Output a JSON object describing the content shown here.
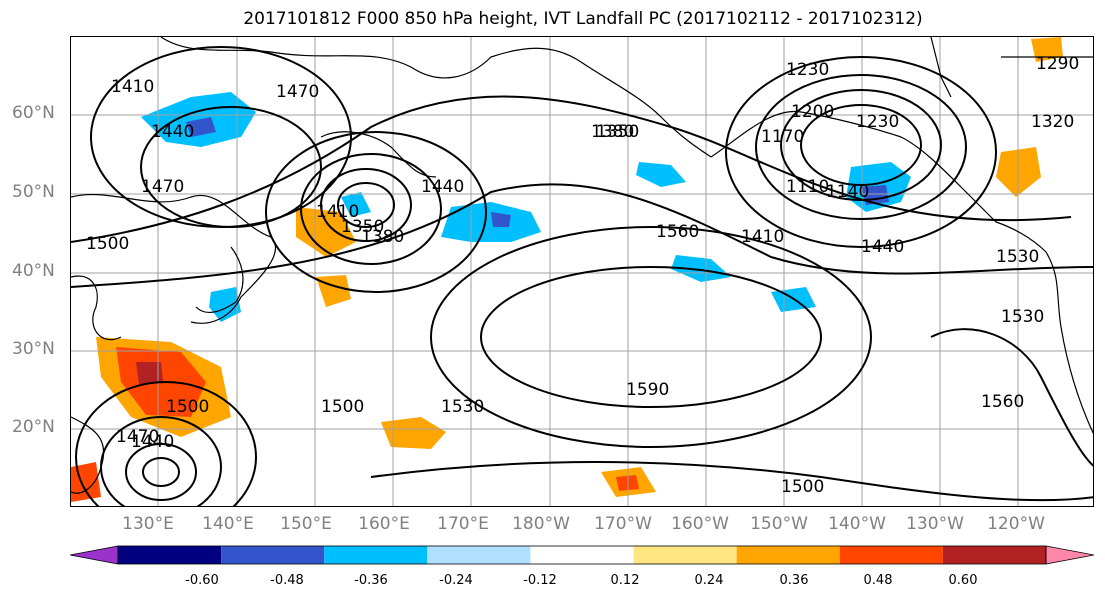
{
  "title": "2017101812 F000 850 hPa height, IVT Landfall PC (2017102112 - 2017102312)",
  "lat_labels": [
    "60°N",
    "50°N",
    "40°N",
    "30°N",
    "20°N"
  ],
  "lon_labels": [
    "130°E",
    "140°E",
    "150°E",
    "160°E",
    "170°E",
    "180°W",
    "170°W",
    "160°W",
    "150°W",
    "140°W",
    "130°W",
    "120°W"
  ],
  "contour_labels": [
    "1410",
    "1470",
    "1440",
    "1470",
    "1500",
    "1350",
    "1410",
    "1380",
    "1440",
    "1350",
    "1380",
    "1560",
    "1230",
    "1290",
    "1200",
    "1230",
    "1170",
    "1320",
    "1110",
    "1140",
    "1410",
    "1440",
    "1530",
    "1530",
    "1560",
    "1590",
    "1500",
    "1530",
    "1500",
    "1470",
    "1440",
    "1500"
  ],
  "colorbar": {
    "ticks": [
      "-0.60",
      "-0.48",
      "-0.36",
      "-0.24",
      "-0.12",
      "0.12",
      "0.24",
      "0.36",
      "0.48",
      "0.60"
    ],
    "colors": [
      "#9933cc",
      "#000080",
      "#3355cc",
      "#00bfff",
      "#b0e0ff",
      "#ffffff",
      "#ffe680",
      "#ffa500",
      "#ff4500",
      "#b22222",
      "#ff88aa"
    ]
  },
  "colors": {
    "frame": "#000000",
    "gridline": "#a0a0a0",
    "axis_label": "#808080"
  }
}
